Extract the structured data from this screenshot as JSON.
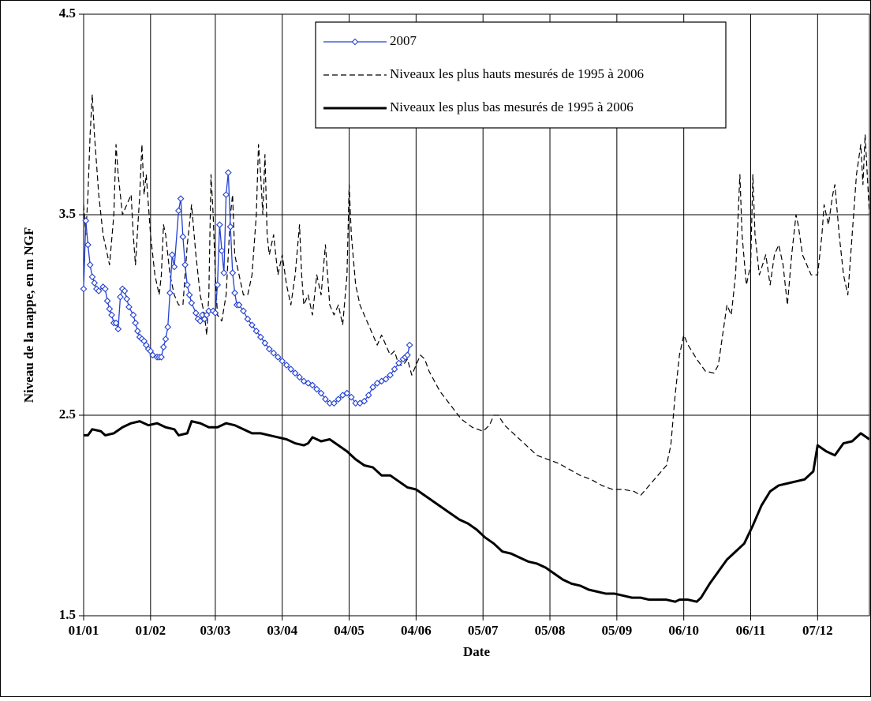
{
  "chart_data": {
    "type": "line",
    "x_label": "Date",
    "y_label": "Niveau de la nappe, en m NGF",
    "xlim": [
      0,
      364
    ],
    "xticks": [
      {
        "value": 0,
        "label": "01/01"
      },
      {
        "value": 31,
        "label": "01/02"
      },
      {
        "value": 61,
        "label": "03/03"
      },
      {
        "value": 92,
        "label": "03/04"
      },
      {
        "value": 123,
        "label": "04/05"
      },
      {
        "value": 154,
        "label": "04/06"
      },
      {
        "value": 185,
        "label": "05/07"
      },
      {
        "value": 216,
        "label": "05/08"
      },
      {
        "value": 247,
        "label": "05/09"
      },
      {
        "value": 278,
        "label": "06/10"
      },
      {
        "value": 309,
        "label": "06/11"
      },
      {
        "value": 340,
        "label": "07/12"
      }
    ],
    "ylim": [
      1.5,
      4.5
    ],
    "yticks": [
      1.5,
      2.5,
      3.5,
      4.5
    ],
    "grid": true,
    "legend_position": "top-center",
    "series": [
      {
        "name": "2007",
        "color": "#2440d0",
        "style": "solid-markers",
        "x": [
          0,
          1,
          2,
          3,
          4,
          5,
          6,
          7,
          9,
          10,
          11,
          12,
          13,
          14,
          15,
          16,
          17,
          18,
          19,
          20,
          21,
          23,
          24,
          25,
          26,
          27,
          28,
          29,
          30,
          31,
          32,
          34,
          35,
          36,
          37,
          38,
          39,
          40,
          41,
          42,
          44,
          45,
          46,
          47,
          48,
          49,
          50,
          52,
          53,
          54,
          55,
          56,
          57,
          58,
          60,
          61,
          62,
          63,
          64,
          65,
          66,
          67,
          68,
          69,
          70,
          71,
          72,
          74,
          76,
          78,
          80,
          82,
          84,
          86,
          88,
          90,
          92,
          94,
          96,
          98,
          100,
          102,
          104,
          106,
          108,
          110,
          112,
          114,
          116,
          118,
          120,
          122,
          124,
          126,
          128,
          130,
          132,
          134,
          136,
          138,
          140,
          142,
          144,
          146,
          148,
          149,
          150,
          151
        ],
        "values": [
          3.13,
          3.47,
          3.35,
          3.25,
          3.19,
          3.16,
          3.13,
          3.12,
          3.14,
          3.13,
          3.07,
          3.03,
          3.0,
          2.96,
          2.96,
          2.93,
          3.09,
          3.13,
          3.12,
          3.08,
          3.04,
          3.0,
          2.96,
          2.92,
          2.89,
          2.88,
          2.87,
          2.85,
          2.83,
          2.82,
          2.8,
          2.79,
          2.79,
          2.79,
          2.84,
          2.88,
          2.94,
          3.11,
          3.3,
          3.24,
          3.52,
          3.58,
          3.39,
          3.25,
          3.15,
          3.1,
          3.06,
          3.01,
          2.98,
          2.97,
          3.0,
          2.98,
          3.0,
          3.02,
          3.02,
          3.01,
          3.15,
          3.45,
          3.32,
          3.21,
          3.6,
          3.71,
          3.44,
          3.21,
          3.11,
          3.05,
          3.05,
          3.02,
          2.98,
          2.95,
          2.92,
          2.89,
          2.86,
          2.83,
          2.81,
          2.79,
          2.77,
          2.75,
          2.73,
          2.71,
          2.69,
          2.67,
          2.66,
          2.65,
          2.63,
          2.61,
          2.58,
          2.56,
          2.56,
          2.58,
          2.6,
          2.61,
          2.59,
          2.56,
          2.56,
          2.57,
          2.6,
          2.64,
          2.66,
          2.67,
          2.68,
          2.7,
          2.73,
          2.76,
          2.78,
          2.79,
          2.8,
          2.85
        ]
      },
      {
        "name": "Niveaux les plus hauts mesurés de 1995 à 2006",
        "color": "#000000",
        "style": "dashed",
        "x": [
          0,
          1,
          2,
          3,
          4,
          5,
          7,
          9,
          11,
          12,
          14,
          15,
          16,
          18,
          20,
          22,
          23,
          24,
          26,
          27,
          28,
          29,
          31,
          33,
          35,
          36,
          37,
          38,
          40,
          42,
          44,
          46,
          47,
          48,
          50,
          52,
          54,
          56,
          57,
          58,
          59,
          60,
          61,
          62,
          64,
          66,
          68,
          69,
          70,
          72,
          74,
          76,
          78,
          80,
          81,
          82,
          83,
          84,
          85,
          86,
          88,
          90,
          92,
          94,
          96,
          98,
          100,
          101,
          102,
          104,
          106,
          108,
          110,
          112,
          114,
          116,
          118,
          120,
          122,
          123,
          124,
          126,
          128,
          130,
          132,
          134,
          136,
          138,
          140,
          142,
          144,
          146,
          148,
          150,
          152,
          154,
          156,
          158,
          160,
          165,
          170,
          175,
          180,
          185,
          188,
          190,
          192,
          195,
          200,
          205,
          210,
          215,
          220,
          225,
          230,
          235,
          240,
          245,
          250,
          255,
          258,
          262,
          266,
          270,
          272,
          274,
          276,
          278,
          280,
          284,
          288,
          292,
          294,
          296,
          298,
          300,
          302,
          304,
          305,
          307,
          309,
          310,
          311,
          313,
          316,
          318,
          320,
          322,
          324,
          326,
          328,
          330,
          331,
          333,
          335,
          337,
          340,
          342,
          343,
          345,
          347,
          348,
          350,
          352,
          354,
          356,
          358,
          360,
          361,
          362,
          364
        ],
        "values": [
          3.55,
          3.4,
          3.6,
          3.9,
          4.1,
          3.9,
          3.6,
          3.4,
          3.3,
          3.25,
          3.5,
          3.85,
          3.7,
          3.5,
          3.55,
          3.6,
          3.4,
          3.25,
          3.6,
          3.85,
          3.6,
          3.7,
          3.4,
          3.2,
          3.1,
          3.2,
          3.45,
          3.4,
          3.2,
          3.1,
          3.05,
          3.05,
          3.2,
          3.35,
          3.55,
          3.3,
          3.1,
          3.0,
          2.9,
          3.1,
          3.7,
          3.5,
          3.2,
          3.0,
          2.97,
          3.1,
          3.5,
          3.6,
          3.3,
          3.2,
          3.1,
          3.1,
          3.2,
          3.5,
          3.85,
          3.7,
          3.5,
          3.8,
          3.4,
          3.3,
          3.4,
          3.2,
          3.3,
          3.15,
          3.05,
          3.2,
          3.45,
          3.2,
          3.05,
          3.1,
          3.0,
          3.2,
          3.1,
          3.35,
          3.05,
          3.0,
          3.05,
          2.95,
          3.2,
          3.65,
          3.4,
          3.15,
          3.05,
          3.0,
          2.95,
          2.9,
          2.85,
          2.9,
          2.85,
          2.8,
          2.82,
          2.75,
          2.75,
          2.78,
          2.7,
          2.75,
          2.8,
          2.78,
          2.72,
          2.62,
          2.55,
          2.48,
          2.44,
          2.42,
          2.45,
          2.5,
          2.5,
          2.45,
          2.4,
          2.35,
          2.3,
          2.28,
          2.26,
          2.23,
          2.2,
          2.18,
          2.15,
          2.13,
          2.13,
          2.12,
          2.1,
          2.15,
          2.2,
          2.25,
          2.35,
          2.6,
          2.8,
          2.9,
          2.85,
          2.78,
          2.72,
          2.71,
          2.75,
          2.9,
          3.05,
          3.0,
          3.2,
          3.7,
          3.4,
          3.15,
          3.25,
          3.7,
          3.4,
          3.2,
          3.3,
          3.15,
          3.3,
          3.35,
          3.25,
          3.05,
          3.3,
          3.5,
          3.45,
          3.3,
          3.25,
          3.2,
          3.2,
          3.4,
          3.55,
          3.45,
          3.6,
          3.65,
          3.4,
          3.2,
          3.1,
          3.4,
          3.7,
          3.85,
          3.65,
          3.9,
          3.5
        ]
      },
      {
        "name": "Niveaux les plus bas mesurés de 1995 à 2006",
        "color": "#000000",
        "style": "solid-bold",
        "x": [
          0,
          2,
          4,
          8,
          10,
          14,
          18,
          22,
          26,
          30,
          34,
          38,
          42,
          44,
          48,
          50,
          54,
          58,
          62,
          66,
          70,
          74,
          78,
          82,
          86,
          90,
          94,
          98,
          102,
          104,
          106,
          110,
          114,
          118,
          122,
          126,
          130,
          134,
          138,
          142,
          146,
          150,
          154,
          158,
          162,
          166,
          170,
          174,
          178,
          182,
          186,
          190,
          194,
          198,
          202,
          206,
          210,
          214,
          218,
          222,
          226,
          230,
          234,
          238,
          242,
          246,
          250,
          254,
          258,
          262,
          266,
          270,
          274,
          276,
          280,
          284,
          286,
          290,
          294,
          298,
          302,
          306,
          310,
          314,
          318,
          322,
          326,
          330,
          334,
          338,
          340,
          344,
          348,
          352,
          356,
          360,
          364
        ],
        "values": [
          2.4,
          2.4,
          2.43,
          2.42,
          2.4,
          2.41,
          2.44,
          2.46,
          2.47,
          2.45,
          2.46,
          2.44,
          2.43,
          2.4,
          2.41,
          2.47,
          2.46,
          2.44,
          2.44,
          2.46,
          2.45,
          2.43,
          2.41,
          2.41,
          2.4,
          2.39,
          2.38,
          2.36,
          2.35,
          2.36,
          2.39,
          2.37,
          2.38,
          2.35,
          2.32,
          2.28,
          2.25,
          2.24,
          2.2,
          2.2,
          2.17,
          2.14,
          2.13,
          2.1,
          2.07,
          2.04,
          2.01,
          1.98,
          1.96,
          1.93,
          1.89,
          1.86,
          1.82,
          1.81,
          1.79,
          1.77,
          1.76,
          1.74,
          1.71,
          1.68,
          1.66,
          1.65,
          1.63,
          1.62,
          1.61,
          1.61,
          1.6,
          1.59,
          1.59,
          1.58,
          1.58,
          1.58,
          1.57,
          1.58,
          1.58,
          1.57,
          1.59,
          1.66,
          1.72,
          1.78,
          1.82,
          1.86,
          1.95,
          2.05,
          2.12,
          2.15,
          2.16,
          2.17,
          2.18,
          2.22,
          2.35,
          2.32,
          2.3,
          2.36,
          2.37,
          2.41,
          2.38
        ]
      }
    ]
  }
}
